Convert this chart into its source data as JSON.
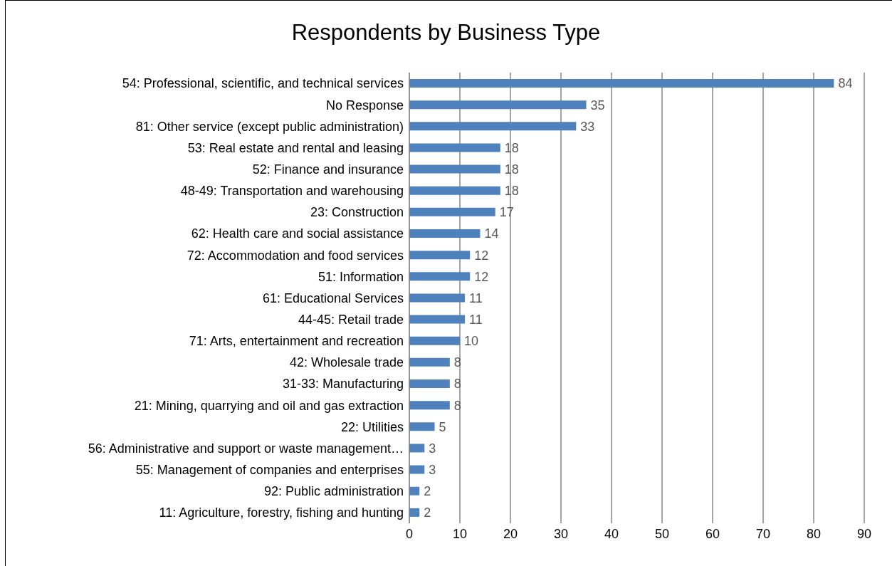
{
  "chart_data": {
    "type": "bar",
    "orientation": "horizontal",
    "title": "Respondents by Business Type",
    "categories": [
      "54: Professional, scientific, and technical services",
      "No Response",
      "81: Other service (except public administration)",
      "53: Real estate and rental and leasing",
      "52: Finance and insurance",
      "48-49: Transportation and warehousing",
      "23: Construction",
      "62: Health care and social assistance",
      "72: Accommodation and food services",
      "51: Information",
      "61: Educational Services",
      "44-45: Retail trade",
      "71: Arts, entertainment and recreation",
      "42: Wholesale trade",
      "31-33: Manufacturing",
      "21: Mining, quarrying and oil and gas extraction",
      "22: Utilities",
      "56: Administrative and support or waste management…",
      "55: Management of companies and enterprises",
      "92: Public administration",
      "11: Agriculture, forestry, fishing and hunting"
    ],
    "values": [
      84,
      35,
      33,
      18,
      18,
      18,
      17,
      14,
      12,
      12,
      11,
      11,
      10,
      8,
      8,
      8,
      5,
      3,
      3,
      2,
      2
    ],
    "color": "#4f81bd",
    "xlim": [
      0,
      90
    ],
    "xticks": [
      0,
      10,
      20,
      30,
      40,
      50,
      60,
      70,
      80,
      90
    ],
    "grid": "x",
    "data_labels": true
  }
}
